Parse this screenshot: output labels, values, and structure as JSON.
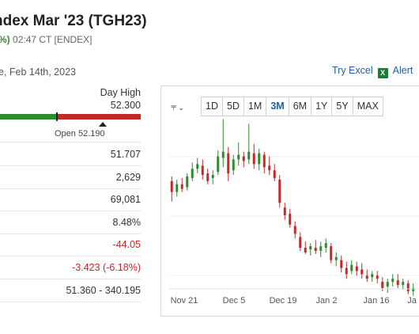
{
  "header": {
    "title": "ndex Mar '23 (TGH23)",
    "change_pct": "%)",
    "time_exchange": "02:47 CT [ENDEX]",
    "date_line": "e, Feb 14th, 2023"
  },
  "actions": {
    "try_excel": "Try Excel",
    "excel_icon": "excel-icon",
    "alerts": "Alert"
  },
  "day_range": {
    "high_label": "Day High",
    "high_value": "52.300",
    "open_label": "Open 52.190",
    "colors": {
      "up": "#2e8b2e",
      "down": "#c62828"
    }
  },
  "stats": [
    {
      "value": "51.707",
      "negative": false
    },
    {
      "value": "2,629",
      "negative": false
    },
    {
      "value": "69,081",
      "negative": false
    },
    {
      "value": "8.48%",
      "negative": false
    },
    {
      "value": "-44.05",
      "negative": true
    },
    {
      "value": "-3.423 (-6.18%)",
      "negative": true
    },
    {
      "value": "51.360 - 340.195",
      "negative": false
    }
  ],
  "chart_toolbar": {
    "chart_type_icon": "candlestick-icon",
    "timeframes": [
      "1D",
      "5D",
      "1M",
      "3M",
      "6M",
      "1Y",
      "5Y",
      "MAX"
    ],
    "active": "3M"
  },
  "chart_data": {
    "type": "candlestick",
    "x_labels": [
      "Nov 21",
      "Dec 5",
      "Dec 19",
      "Jan 2",
      "Jan 16",
      "Ja"
    ],
    "ylim": [
      45,
      140
    ],
    "candles": [
      {
        "o": 113,
        "h": 116,
        "l": 100,
        "c": 106
      },
      {
        "o": 106,
        "h": 114,
        "l": 103,
        "c": 111
      },
      {
        "o": 111,
        "h": 115,
        "l": 106,
        "c": 108
      },
      {
        "o": 109,
        "h": 118,
        "l": 107,
        "c": 116
      },
      {
        "o": 115,
        "h": 125,
        "l": 113,
        "c": 121
      },
      {
        "o": 121,
        "h": 128,
        "l": 118,
        "c": 124
      },
      {
        "o": 123,
        "h": 127,
        "l": 114,
        "c": 117
      },
      {
        "o": 118,
        "h": 121,
        "l": 111,
        "c": 113
      },
      {
        "o": 115,
        "h": 120,
        "l": 111,
        "c": 117
      },
      {
        "o": 119,
        "h": 133,
        "l": 117,
        "c": 129
      },
      {
        "o": 128,
        "h": 153,
        "l": 122,
        "c": 132
      },
      {
        "o": 131,
        "h": 135,
        "l": 113,
        "c": 118
      },
      {
        "o": 120,
        "h": 130,
        "l": 117,
        "c": 127
      },
      {
        "o": 127,
        "h": 138,
        "l": 123,
        "c": 130
      },
      {
        "o": 129,
        "h": 132,
        "l": 122,
        "c": 126
      },
      {
        "o": 127,
        "h": 150,
        "l": 124,
        "c": 132
      },
      {
        "o": 131,
        "h": 137,
        "l": 121,
        "c": 124
      },
      {
        "o": 124,
        "h": 134,
        "l": 120,
        "c": 131
      },
      {
        "o": 130,
        "h": 132,
        "l": 118,
        "c": 122
      },
      {
        "o": 123,
        "h": 129,
        "l": 117,
        "c": 120
      },
      {
        "o": 120,
        "h": 124,
        "l": 113,
        "c": 115
      },
      {
        "o": 114,
        "h": 117,
        "l": 96,
        "c": 99
      },
      {
        "o": 96,
        "h": 99,
        "l": 88,
        "c": 91
      },
      {
        "o": 92,
        "h": 95,
        "l": 83,
        "c": 85
      },
      {
        "o": 84,
        "h": 87,
        "l": 76,
        "c": 79
      },
      {
        "o": 77,
        "h": 80,
        "l": 68,
        "c": 70
      },
      {
        "o": 70,
        "h": 74,
        "l": 66,
        "c": 67
      },
      {
        "o": 69,
        "h": 73,
        "l": 65,
        "c": 71
      },
      {
        "o": 70,
        "h": 75,
        "l": 66,
        "c": 68
      },
      {
        "o": 68,
        "h": 74,
        "l": 64,
        "c": 71
      },
      {
        "o": 70,
        "h": 76,
        "l": 67,
        "c": 73
      },
      {
        "o": 71,
        "h": 73,
        "l": 60,
        "c": 62
      },
      {
        "o": 62,
        "h": 67,
        "l": 58,
        "c": 64
      },
      {
        "o": 62,
        "h": 65,
        "l": 54,
        "c": 57
      },
      {
        "o": 57,
        "h": 61,
        "l": 50,
        "c": 53
      },
      {
        "o": 55,
        "h": 62,
        "l": 53,
        "c": 59
      },
      {
        "o": 58,
        "h": 61,
        "l": 52,
        "c": 55
      },
      {
        "o": 56,
        "h": 60,
        "l": 50,
        "c": 53
      },
      {
        "o": 52,
        "h": 56,
        "l": 48,
        "c": 50
      },
      {
        "o": 51,
        "h": 55,
        "l": 48,
        "c": 53
      },
      {
        "o": 52,
        "h": 55,
        "l": 47,
        "c": 50
      },
      {
        "o": 48,
        "h": 51,
        "l": 42,
        "c": 44
      },
      {
        "o": 45,
        "h": 50,
        "l": 41,
        "c": 48
      },
      {
        "o": 48,
        "h": 53,
        "l": 45,
        "c": 50
      },
      {
        "o": 49,
        "h": 53,
        "l": 44,
        "c": 46
      },
      {
        "o": 46,
        "h": 50,
        "l": 43,
        "c": 48
      },
      {
        "o": 47,
        "h": 49,
        "l": 40,
        "c": 42
      },
      {
        "o": 42,
        "h": 47,
        "l": 39,
        "c": 44
      }
    ],
    "grid": true
  }
}
